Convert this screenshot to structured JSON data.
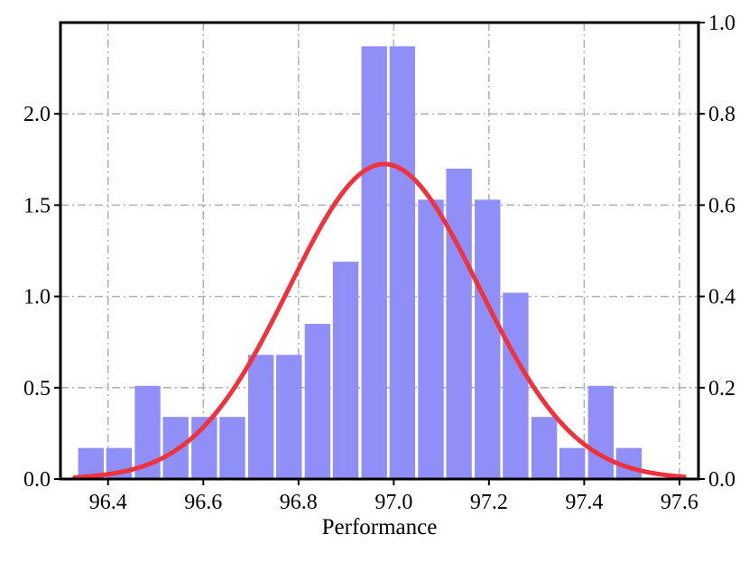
{
  "chart_data": {
    "type": "bar",
    "title": "",
    "xlabel": "Performance",
    "ylabel": "",
    "y2label": "",
    "xlim": [
      96.3,
      97.64
    ],
    "ylim": [
      0,
      2.5
    ],
    "y2lim": [
      0,
      1.0
    ],
    "xticks": [
      96.4,
      96.6,
      96.8,
      97.0,
      97.2,
      97.4,
      97.6
    ],
    "xtick_labels": [
      "96.4",
      "96.6",
      "96.8",
      "97.0",
      "97.2",
      "97.4",
      "97.6"
    ],
    "yticks": [
      0.0,
      0.5,
      1.0,
      1.5,
      2.0
    ],
    "ytick_labels": [
      "0.0",
      "0.5",
      "1.0",
      "1.5",
      "2.0"
    ],
    "y2ticks": [
      0.0,
      0.2,
      0.4,
      0.6,
      0.8,
      1.0
    ],
    "y2tick_labels": [
      "0.0",
      "0.2",
      "0.4",
      "0.6",
      "0.8",
      "1.0"
    ],
    "grid": true,
    "bar_color": "#8f8ff7",
    "curve_color": "#f0323c",
    "histogram": {
      "bin_width": 0.0595,
      "bins": [
        {
          "x": 96.364,
          "value": 0.17
        },
        {
          "x": 96.423,
          "value": 0.17
        },
        {
          "x": 96.483,
          "value": 0.51
        },
        {
          "x": 96.542,
          "value": 0.34
        },
        {
          "x": 96.602,
          "value": 0.34
        },
        {
          "x": 96.661,
          "value": 0.34
        },
        {
          "x": 96.721,
          "value": 0.68
        },
        {
          "x": 96.78,
          "value": 0.68
        },
        {
          "x": 96.84,
          "value": 0.85
        },
        {
          "x": 96.899,
          "value": 1.19
        },
        {
          "x": 96.959,
          "value": 2.37
        },
        {
          "x": 97.018,
          "value": 2.37
        },
        {
          "x": 97.078,
          "value": 1.53
        },
        {
          "x": 97.137,
          "value": 1.7
        },
        {
          "x": 97.197,
          "value": 1.53
        },
        {
          "x": 97.256,
          "value": 1.02
        },
        {
          "x": 97.316,
          "value": 0.34
        },
        {
          "x": 97.375,
          "value": 0.17
        },
        {
          "x": 97.435,
          "value": 0.51
        },
        {
          "x": 97.494,
          "value": 0.17
        }
      ]
    },
    "curve": {
      "axis": "right",
      "type": "normal",
      "mean": 96.98,
      "std": 0.2,
      "peak": 0.69,
      "x_range": [
        96.33,
        97.61
      ]
    }
  }
}
